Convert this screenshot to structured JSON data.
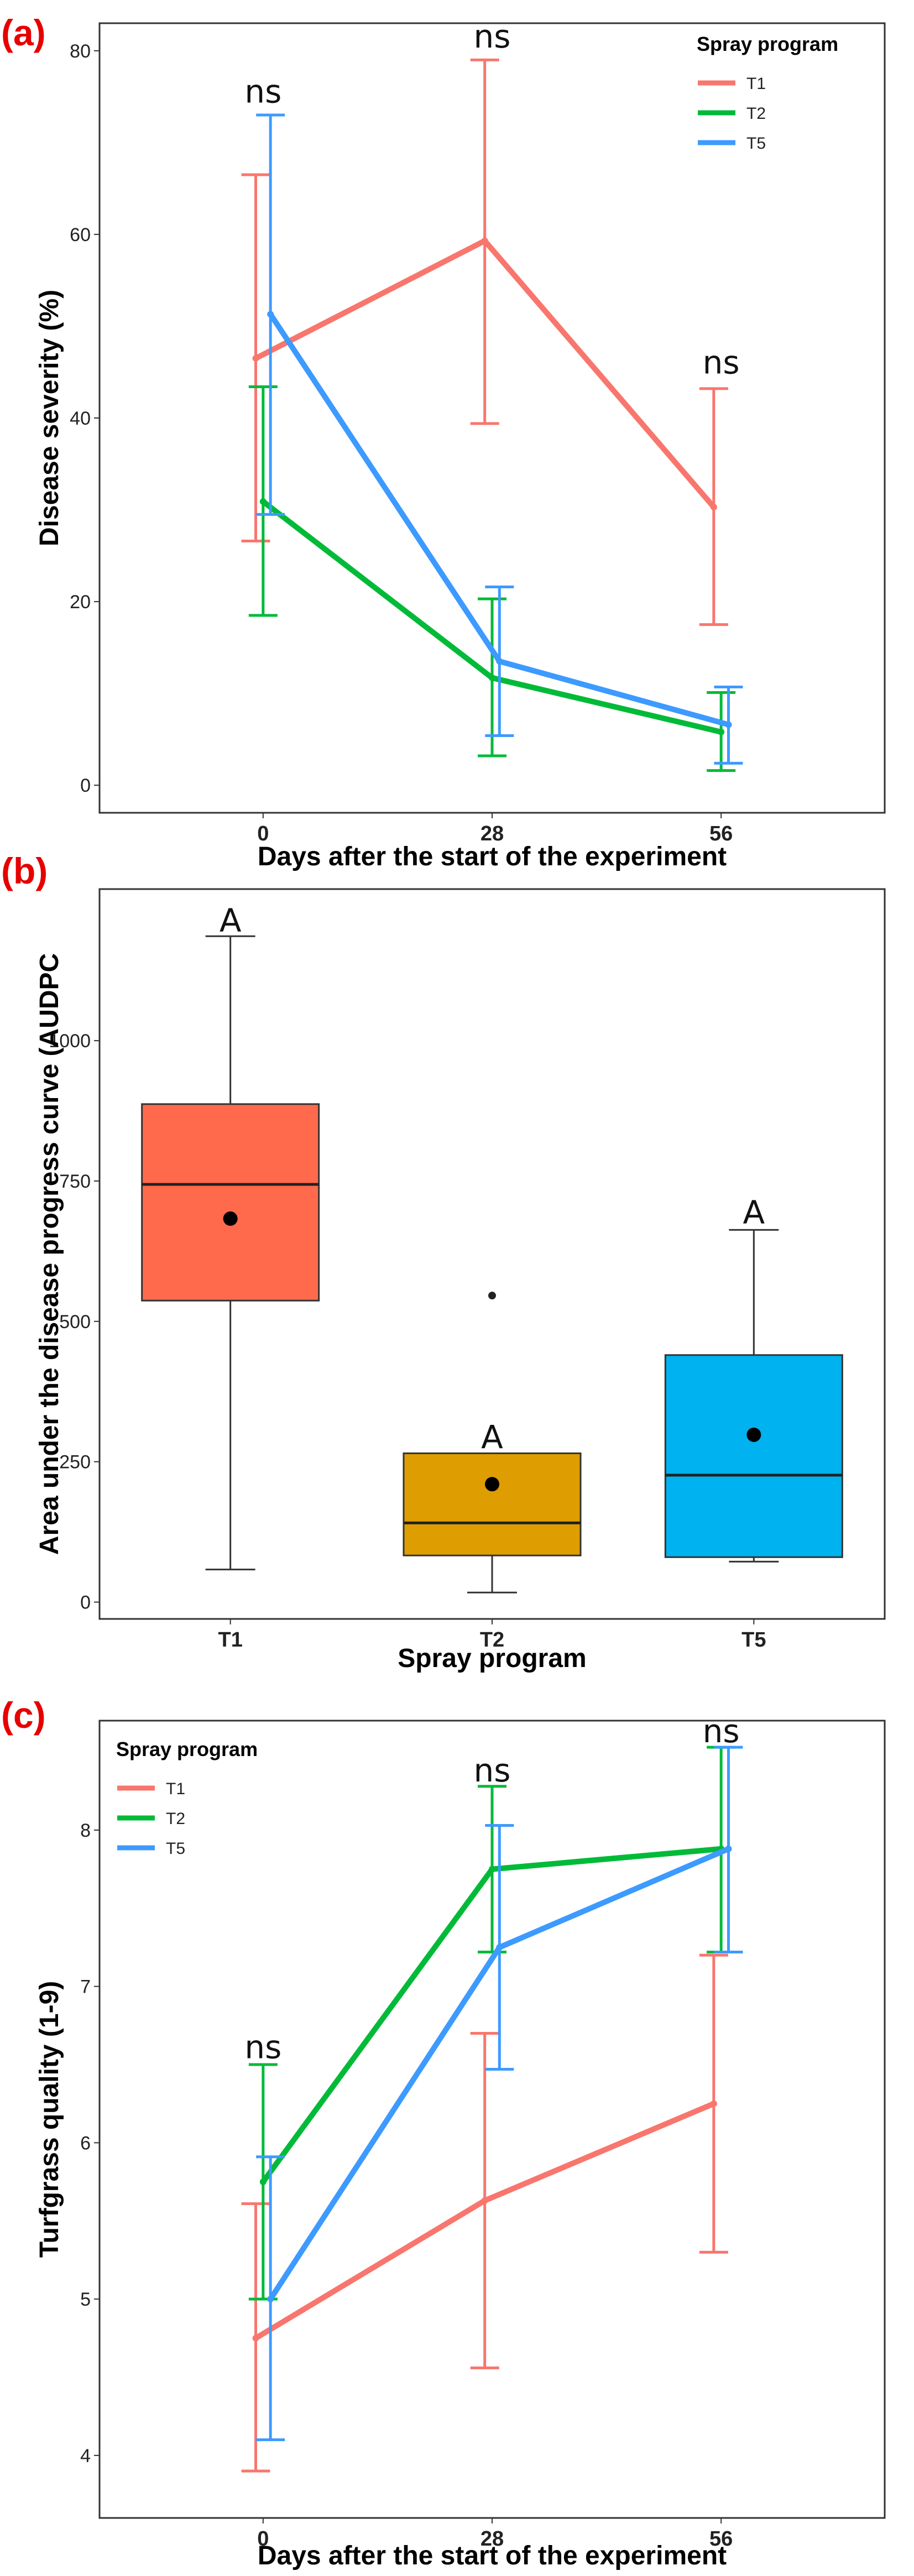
{
  "chart_data": [
    {
      "panel_label": "(a)",
      "type": "line",
      "xlabel": "Days after the start of the experiment",
      "ylabel": "Disease severity (%)",
      "x": [
        0,
        28,
        56
      ],
      "x_tick_labels": [
        "0",
        "28",
        "56"
      ],
      "xlim": [
        -20,
        76
      ],
      "ylim": [
        -3,
        83
      ],
      "y_ticks": [
        0,
        20,
        40,
        60,
        80
      ],
      "y_tick_labels": [
        "0",
        "20",
        "40",
        "60",
        "80"
      ],
      "legend": {
        "title": "Spray program",
        "position": "top-right"
      },
      "series": [
        {
          "name": "T1",
          "color": "#f8766d",
          "x_offset": -0.9,
          "values": [
            46.5,
            59.3,
            30.3
          ],
          "lower": [
            26.6,
            39.4,
            17.5
          ],
          "upper": [
            66.5,
            79.0,
            43.2
          ]
        },
        {
          "name": "T2",
          "color": "#00ba38",
          "x_offset": 0,
          "values": [
            30.9,
            11.7,
            5.8
          ],
          "lower": [
            18.5,
            3.2,
            1.6
          ],
          "upper": [
            43.4,
            20.3,
            10.1
          ]
        },
        {
          "name": "T5",
          "color": "#3d9aff",
          "x_offset": 0.9,
          "values": [
            51.3,
            13.5,
            6.6
          ],
          "lower": [
            29.5,
            5.4,
            2.4
          ],
          "upper": [
            73.0,
            21.6,
            10.7
          ]
        }
      ],
      "annotations": [
        {
          "x": 0,
          "y": 74,
          "text": "ns"
        },
        {
          "x": 28,
          "y": 80,
          "text": "ns"
        },
        {
          "x": 56,
          "y": 44.5,
          "text": "ns"
        }
      ]
    },
    {
      "panel_label": "(b)",
      "type": "box",
      "xlabel": "Spray program",
      "ylabel": "Area under the disease progress curve (AUDPC",
      "categories": [
        "T1",
        "T2",
        "T5"
      ],
      "ylim": [
        -30,
        1270
      ],
      "y_ticks": [
        0,
        250,
        500,
        750,
        1000
      ],
      "y_tick_labels": [
        "0",
        "250",
        "500",
        "750",
        "1000"
      ],
      "boxes": [
        {
          "category": "T1",
          "color": "#ff6a4d",
          "whisker_low": 58,
          "q1": 537,
          "median": 744,
          "q3": 887,
          "whisker_high": 1186,
          "mean": 683,
          "outliers": [],
          "letter": "A",
          "letter_y": 1190
        },
        {
          "category": "T2",
          "color": "#de9d00",
          "whisker_low": 17,
          "q1": 83,
          "median": 141,
          "q3": 265,
          "whisker_high": 265,
          "mean": 210,
          "outliers": [
            546
          ],
          "letter": "A",
          "letter_y": 270
        },
        {
          "category": "T5",
          "color": "#00b2ef",
          "whisker_low": 72,
          "q1": 80,
          "median": 226,
          "q3": 440,
          "whisker_high": 663,
          "mean": 298,
          "outliers": [],
          "letter": "A",
          "letter_y": 670
        }
      ]
    },
    {
      "panel_label": "(c)",
      "type": "line",
      "xlabel": "Days after the start of the experiment",
      "ylabel": "Turfgrass quality (1-9)",
      "x": [
        0,
        28,
        56
      ],
      "x_tick_labels": [
        "0",
        "28",
        "56"
      ],
      "xlim": [
        -20,
        76
      ],
      "ylim": [
        3.6,
        8.7
      ],
      "y_ticks": [
        4,
        5,
        6,
        7,
        8
      ],
      "y_tick_labels": [
        "4",
        "5",
        "6",
        "7",
        "8"
      ],
      "legend": {
        "title": "Spray program",
        "position": "top-left"
      },
      "series": [
        {
          "name": "T1",
          "color": "#f8766d",
          "x_offset": -0.9,
          "values": [
            4.75,
            5.63,
            6.25
          ],
          "lower": [
            3.9,
            4.56,
            5.3
          ],
          "upper": [
            5.61,
            6.7,
            7.2
          ]
        },
        {
          "name": "T2",
          "color": "#00ba38",
          "x_offset": 0,
          "values": [
            5.75,
            7.75,
            7.88
          ],
          "lower": [
            5.0,
            7.22,
            7.22
          ],
          "upper": [
            6.5,
            8.28,
            8.53
          ]
        },
        {
          "name": "T5",
          "color": "#3d9aff",
          "x_offset": 0.9,
          "values": [
            5.0,
            7.25,
            7.88
          ],
          "lower": [
            4.1,
            6.47,
            7.22
          ],
          "upper": [
            5.91,
            8.03,
            8.53
          ]
        }
      ],
      "annotations": [
        {
          "x": 0,
          "y": 6.52,
          "text": "ns"
        },
        {
          "x": 28,
          "y": 8.29,
          "text": "ns"
        },
        {
          "x": 56,
          "y": 8.54,
          "text": "ns"
        }
      ]
    }
  ]
}
